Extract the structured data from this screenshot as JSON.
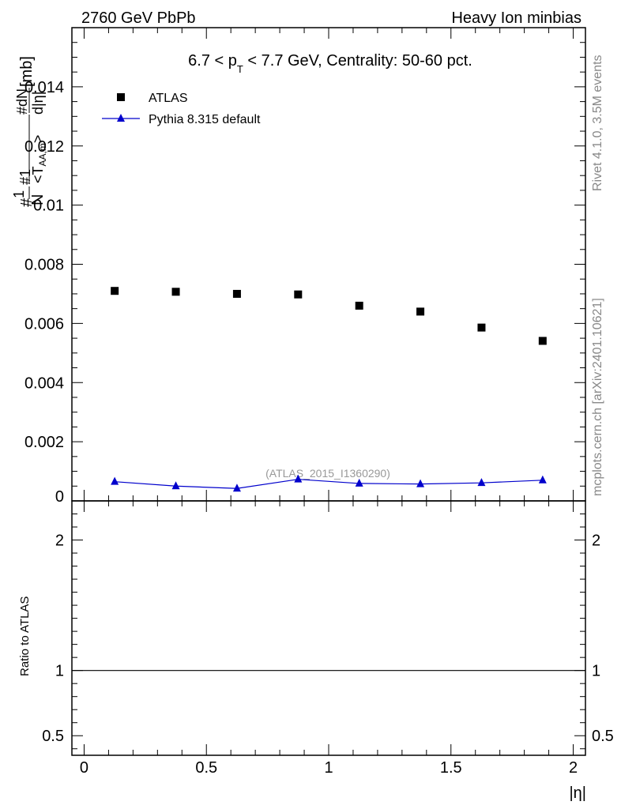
{
  "header": {
    "left": "2760 GeV PbPb",
    "right": "Heavy Ion minbias"
  },
  "side_labels": {
    "rivet": "Rivet 4.1.0,  3.5M events",
    "mcplots": "mcplots.cern.ch [arXiv:2401.10621]"
  },
  "chart_data": {
    "type": "scatter",
    "title": "6.7 < p_T < 7.7 GeV, Centrality: 50-60 pct.",
    "title_parts": {
      "pre": "6.7 < p",
      "sub": "T",
      "post": " < 7.7 GeV, Centrality: 50-60 pct."
    },
    "analysis_label": "(ATLAS_2015_I1360290)",
    "xlabel": "|η|",
    "ylabel": "#frac{1}{N} #frac{1}{<T_{AA,m}>} #frac{dN}{d|η|} [mb]",
    "ylabel_parts": {
      "frac1": "1",
      "N": "N",
      "frac2": "1",
      "T": "<T",
      "Tsub": "AA,m",
      "Tend": ">",
      "num": "dN",
      "den": "d|η|",
      "unit": "[mb]",
      "hash": "#"
    },
    "xlim": [
      -0.05,
      2.05
    ],
    "ylim": [
      0,
      0.016
    ],
    "x_ticks": [
      0,
      0.5,
      1,
      1.5,
      2
    ],
    "x_tick_labels": [
      "0",
      "0.5",
      "1",
      "1.5",
      "2"
    ],
    "y_ticks": [
      0,
      0.002,
      0.004,
      0.006,
      0.008,
      0.01,
      0.012,
      0.014
    ],
    "y_tick_labels": [
      "0",
      "0.002",
      "0.004",
      "0.006",
      "0.008",
      "0.01",
      "0.012",
      "0.014"
    ],
    "x": [
      0.125,
      0.375,
      0.625,
      0.875,
      1.125,
      1.375,
      1.625,
      1.875
    ],
    "series": [
      {
        "name": "ATLAS",
        "marker": "square",
        "color": "#000000",
        "values": [
          0.0071,
          0.00707,
          0.007,
          0.00698,
          0.0066,
          0.0064,
          0.00586,
          0.00541
        ]
      },
      {
        "name": "Pythia 8.315 default",
        "marker": "triangle",
        "color": "#0000cc",
        "values": [
          0.00065,
          0.0005,
          0.00042,
          0.00073,
          0.00059,
          0.00057,
          0.00061,
          0.0007
        ]
      }
    ],
    "legend_position": "top-left",
    "ratio_panel": {
      "ylabel": "Ratio to ATLAS",
      "ylim": [
        0.35,
        2.3
      ],
      "y_tick_labels": [
        "0.5",
        "1",
        "2"
      ],
      "y_ticks": [
        0.5,
        1,
        2
      ],
      "reference_line": 1
    }
  }
}
